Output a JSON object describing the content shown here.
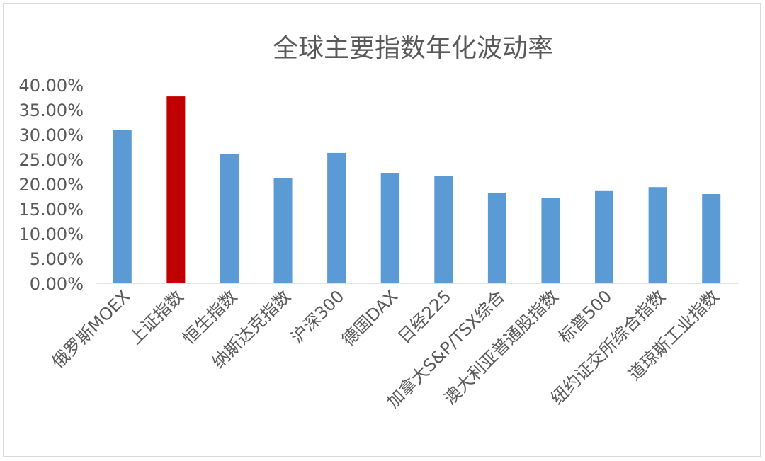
{
  "chart_data": {
    "type": "bar",
    "title": "全球主要指数年化波动率",
    "categories": [
      "俄罗斯MOEX",
      "上证指数",
      "恒生指数",
      "纳斯达克指数",
      "沪深300",
      "德国DAX",
      "日经225",
      "加拿大S&P/TSX综合",
      "澳大利亚普通股指数",
      "标普500",
      "纽约证交所综合指数",
      "道琼斯工业指数"
    ],
    "values": [
      0.31,
      0.377,
      0.261,
      0.212,
      0.263,
      0.222,
      0.216,
      0.182,
      0.172,
      0.186,
      0.194,
      0.18
    ],
    "ylim": [
      0,
      0.4
    ],
    "yticks": [
      "0.00%",
      "5.00%",
      "10.00%",
      "15.00%",
      "20.00%",
      "25.00%",
      "30.00%",
      "35.00%",
      "40.00%"
    ],
    "grid": false,
    "legend": "none",
    "colors": {
      "bar": "#5b9bd5",
      "highlight": "#c00000",
      "highlight_category": "上证指数",
      "axis": "#d9d9d9",
      "text": "#595959"
    }
  }
}
